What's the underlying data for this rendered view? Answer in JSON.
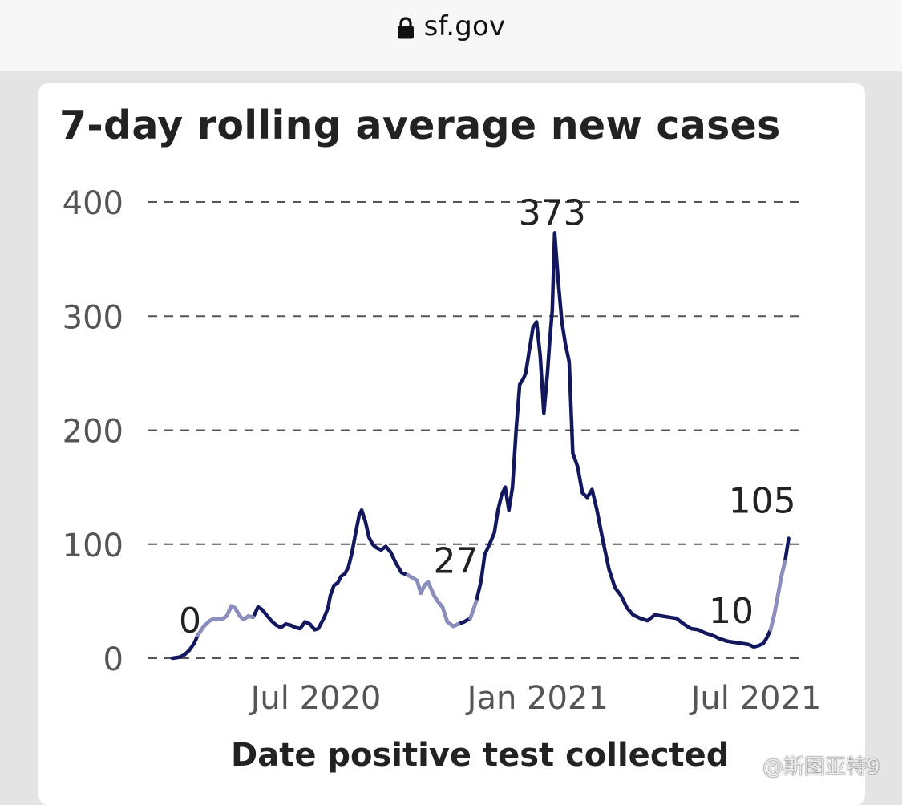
{
  "browser": {
    "url": "sf.gov",
    "icons": {
      "lock": "lock-icon"
    }
  },
  "watermark": {
    "text": "@斯图亚特9",
    "icon": "weibo-icon"
  },
  "chart_data": {
    "type": "line",
    "title": "7-day rolling average new cases",
    "xlabel": "Date positive test collected",
    "ylabel": "",
    "ylim": [
      0,
      400
    ],
    "yticks": [
      0,
      100,
      200,
      300,
      400
    ],
    "xticks": [
      {
        "label": "Jul 2020",
        "date": "2020-07-01"
      },
      {
        "label": "Jan 2021",
        "date": "2021-01-01"
      },
      {
        "label": "Jul 2021",
        "date": "2021-07-01"
      }
    ],
    "grid": "horizontal dashed",
    "colors": {
      "line": "#12175e",
      "highlight": "#8c8fbd",
      "grid": "#555555",
      "text": "#222222",
      "tick": "#555555"
    },
    "annotations": [
      {
        "text": "0",
        "date": "2020-03-04",
        "value": 0
      },
      {
        "text": "27",
        "date": "2020-10-25",
        "value": 27
      },
      {
        "text": "373",
        "date": "2021-01-13",
        "value": 373
      },
      {
        "text": "10",
        "date": "2021-06-29",
        "value": 10
      },
      {
        "text": "105",
        "date": "2021-07-28",
        "value": 105
      }
    ],
    "series": [
      {
        "highlight_ranges": [
          [
            "2020-03-25",
            "2020-05-10"
          ],
          [
            "2020-09-12",
            "2020-10-27"
          ],
          [
            "2020-11-06",
            "2020-11-11"
          ],
          [
            "2021-07-13",
            "2021-07-25"
          ]
        ],
        "points": [
          [
            "2020-03-04",
            0
          ],
          [
            "2020-03-10",
            1
          ],
          [
            "2020-03-14",
            3
          ],
          [
            "2020-03-18",
            7
          ],
          [
            "2020-03-22",
            13
          ],
          [
            "2020-03-25",
            20
          ],
          [
            "2020-03-30",
            28
          ],
          [
            "2020-04-04",
            33
          ],
          [
            "2020-04-08",
            35
          ],
          [
            "2020-04-14",
            34
          ],
          [
            "2020-04-18",
            37
          ],
          [
            "2020-04-22",
            46
          ],
          [
            "2020-04-25",
            44
          ],
          [
            "2020-04-29",
            37
          ],
          [
            "2020-05-02",
            34
          ],
          [
            "2020-05-06",
            37
          ],
          [
            "2020-05-10",
            36
          ],
          [
            "2020-05-14",
            45
          ],
          [
            "2020-05-17",
            43
          ],
          [
            "2020-05-21",
            38
          ],
          [
            "2020-05-25",
            33
          ],
          [
            "2020-05-29",
            29
          ],
          [
            "2020-06-02",
            27
          ],
          [
            "2020-06-06",
            30
          ],
          [
            "2020-06-10",
            29
          ],
          [
            "2020-06-14",
            27
          ],
          [
            "2020-06-18",
            26
          ],
          [
            "2020-06-22",
            32
          ],
          [
            "2020-06-26",
            30
          ],
          [
            "2020-06-30",
            25
          ],
          [
            "2020-07-03",
            26
          ],
          [
            "2020-07-08",
            36
          ],
          [
            "2020-07-11",
            44
          ],
          [
            "2020-07-13",
            55
          ],
          [
            "2020-07-16",
            64
          ],
          [
            "2020-07-19",
            66
          ],
          [
            "2020-07-22",
            72
          ],
          [
            "2020-07-25",
            74
          ],
          [
            "2020-07-28",
            80
          ],
          [
            "2020-07-31",
            93
          ],
          [
            "2020-08-03",
            110
          ],
          [
            "2020-08-06",
            126
          ],
          [
            "2020-08-08",
            130
          ],
          [
            "2020-08-11",
            120
          ],
          [
            "2020-08-14",
            106
          ],
          [
            "2020-08-17",
            100
          ],
          [
            "2020-08-20",
            97
          ],
          [
            "2020-08-24",
            95
          ],
          [
            "2020-08-28",
            98
          ],
          [
            "2020-09-01",
            93
          ],
          [
            "2020-09-05",
            84
          ],
          [
            "2020-09-10",
            75
          ],
          [
            "2020-09-15",
            73
          ],
          [
            "2020-09-20",
            70
          ],
          [
            "2020-09-23",
            68
          ],
          [
            "2020-09-26",
            57
          ],
          [
            "2020-09-29",
            64
          ],
          [
            "2020-10-02",
            67
          ],
          [
            "2020-10-07",
            55
          ],
          [
            "2020-10-10",
            50
          ],
          [
            "2020-10-14",
            45
          ],
          [
            "2020-10-18",
            32
          ],
          [
            "2020-10-23",
            28
          ],
          [
            "2020-10-27",
            30
          ],
          [
            "2020-11-01",
            32
          ],
          [
            "2020-11-06",
            35
          ],
          [
            "2020-11-11",
            50
          ],
          [
            "2020-11-15",
            68
          ],
          [
            "2020-11-18",
            91
          ],
          [
            "2020-11-22",
            100
          ],
          [
            "2020-11-26",
            110
          ],
          [
            "2020-11-29",
            130
          ],
          [
            "2020-12-02",
            143
          ],
          [
            "2020-12-05",
            150
          ],
          [
            "2020-12-08",
            130
          ],
          [
            "2020-12-11",
            150
          ],
          [
            "2020-12-14",
            200
          ],
          [
            "2020-12-17",
            240
          ],
          [
            "2020-12-20",
            245
          ],
          [
            "2020-12-22",
            250
          ],
          [
            "2020-12-25",
            270
          ],
          [
            "2020-12-28",
            290
          ],
          [
            "2020-12-31",
            295
          ],
          [
            "2021-01-03",
            265
          ],
          [
            "2021-01-06",
            215
          ],
          [
            "2021-01-09",
            250
          ],
          [
            "2021-01-11",
            280
          ],
          [
            "2021-01-13",
            305
          ],
          [
            "2021-01-15",
            373
          ],
          [
            "2021-01-18",
            330
          ],
          [
            "2021-01-21",
            295
          ],
          [
            "2021-01-24",
            275
          ],
          [
            "2021-01-27",
            260
          ],
          [
            "2021-01-30",
            180
          ],
          [
            "2021-02-03",
            168
          ],
          [
            "2021-02-07",
            145
          ],
          [
            "2021-02-11",
            141
          ],
          [
            "2021-02-15",
            148
          ],
          [
            "2021-02-19",
            130
          ],
          [
            "2021-02-24",
            103
          ],
          [
            "2021-03-01",
            78
          ],
          [
            "2021-03-06",
            62
          ],
          [
            "2021-03-11",
            55
          ],
          [
            "2021-03-16",
            44
          ],
          [
            "2021-03-21",
            38
          ],
          [
            "2021-03-27",
            35
          ],
          [
            "2021-04-02",
            33
          ],
          [
            "2021-04-08",
            38
          ],
          [
            "2021-04-14",
            37
          ],
          [
            "2021-04-20",
            36
          ],
          [
            "2021-04-26",
            35
          ],
          [
            "2021-05-02",
            30
          ],
          [
            "2021-05-08",
            26
          ],
          [
            "2021-05-14",
            25
          ],
          [
            "2021-05-20",
            22
          ],
          [
            "2021-05-26",
            20
          ],
          [
            "2021-06-01",
            17
          ],
          [
            "2021-06-07",
            15
          ],
          [
            "2021-06-13",
            14
          ],
          [
            "2021-06-19",
            13
          ],
          [
            "2021-06-25",
            12
          ],
          [
            "2021-06-29",
            10
          ],
          [
            "2021-07-03",
            11
          ],
          [
            "2021-07-07",
            13
          ],
          [
            "2021-07-10",
            18
          ],
          [
            "2021-07-13",
            25
          ],
          [
            "2021-07-16",
            38
          ],
          [
            "2021-07-19",
            55
          ],
          [
            "2021-07-22",
            72
          ],
          [
            "2021-07-25",
            85
          ],
          [
            "2021-07-28",
            105
          ]
        ]
      }
    ]
  }
}
